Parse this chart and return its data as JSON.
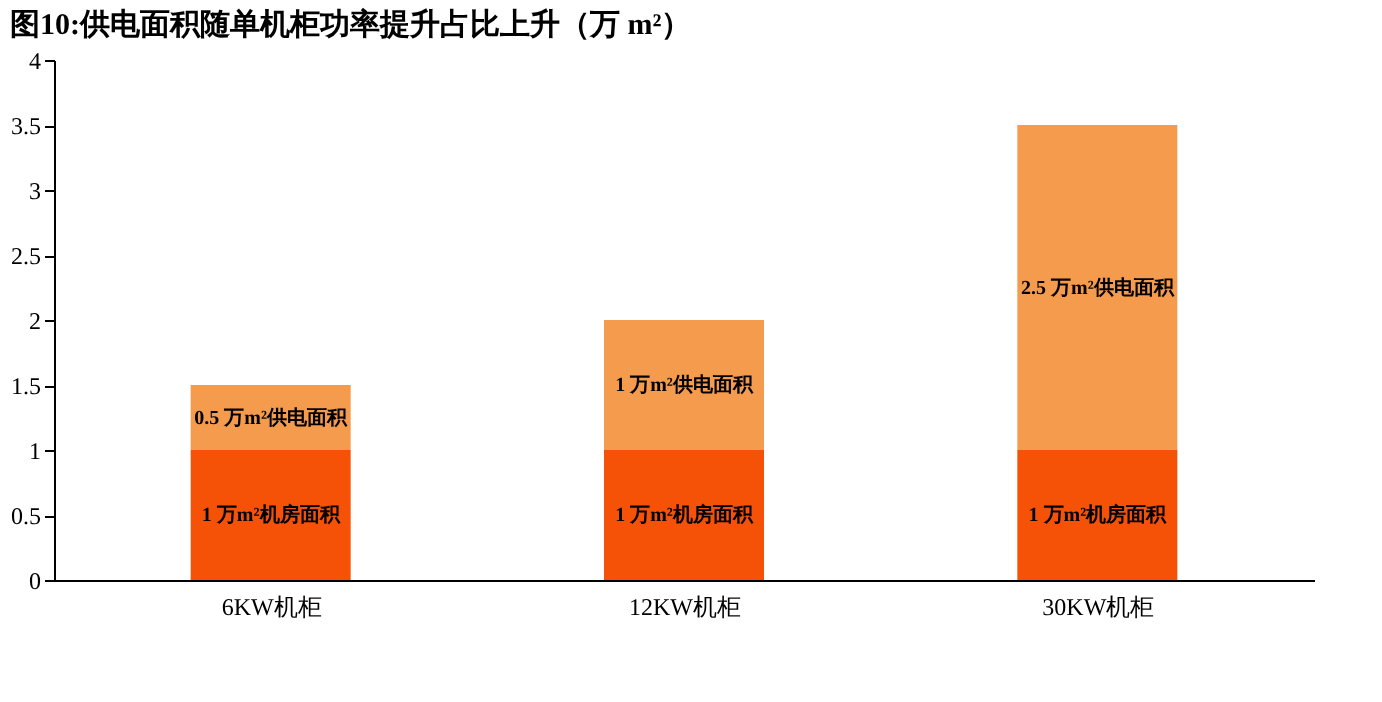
{
  "chart_data": {
    "type": "bar",
    "title": "图10:供电面积随单机柜功率提升占比上升（万 m²）",
    "categories": [
      "6KW机柜",
      "12KW机柜",
      "30KW机柜"
    ],
    "stacked": true,
    "series": [
      {
        "color": "#f55208",
        "values": [
          1,
          1,
          1
        ],
        "value_labels": [
          "1 万m²机房面积",
          "1 万m²机房面积",
          "1 万m²机房面积"
        ]
      },
      {
        "color": "#f59b4e",
        "values": [
          0.5,
          1,
          2.5
        ],
        "value_labels": [
          "0.5 万m²供电面积",
          "1 万m²供电面积",
          "2.5 万m²供电面积"
        ]
      }
    ],
    "ylim": [
      0,
      4
    ],
    "yticks": [
      0,
      0.5,
      1,
      1.5,
      2,
      2.5,
      3,
      3.5,
      4
    ],
    "grid": false
  }
}
